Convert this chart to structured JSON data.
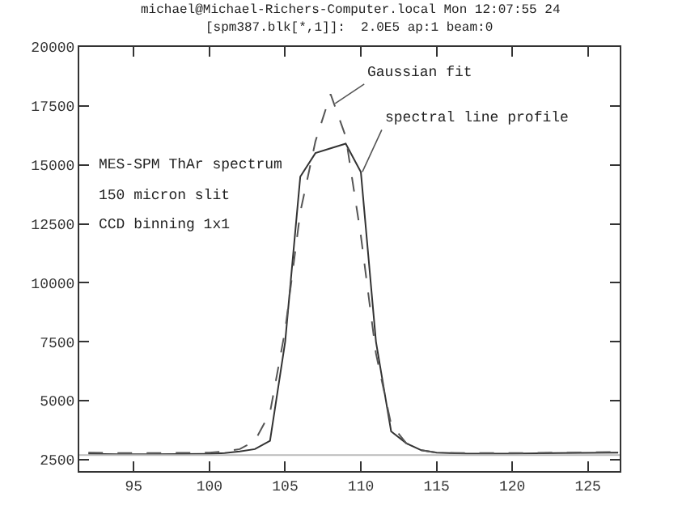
{
  "chart_data": {
    "type": "line",
    "annotations": [
      "michael@Michael-Richers-Computer.local Mon 12:07:55 24",
      "[spm387.blk[*,1]]:  2.0E5 ap:1 beam:0",
      "MES-SPM ThAr spectrum",
      "150 micron slit",
      "CCD binning 1x1",
      {
        "text": "Gaussian fit",
        "x": 108.3,
        "y": 17600
      },
      {
        "text": "spectral line profile",
        "x": 110.1,
        "y": 14700
      }
    ],
    "x": [
      92,
      94,
      96,
      98,
      100,
      101,
      102,
      103,
      104,
      105,
      106,
      107,
      108,
      109,
      110,
      111,
      112,
      113,
      114,
      115,
      117,
      120,
      123,
      127
    ],
    "series": [
      {
        "color": "#333333",
        "line_style": "solid",
        "values": [
          2750,
          2730,
          2730,
          2740,
          2750,
          2780,
          2850,
          2950,
          3300,
          7500,
          14500,
          15500,
          15700,
          15900,
          14700,
          7500,
          3700,
          3200,
          2900,
          2800,
          2760,
          2760,
          2780,
          2800
        ]
      },
      {
        "color": "#555555",
        "line_style": "dashed",
        "values": [
          2800,
          2780,
          2780,
          2790,
          2800,
          2850,
          2950,
          3300,
          4500,
          8000,
          13000,
          16000,
          18000,
          16200,
          12000,
          7000,
          4000,
          3200,
          2900,
          2800,
          2780,
          2780,
          2800,
          2830
        ]
      }
    ],
    "ref_lines": [
      {
        "axis": "y",
        "value": 2700,
        "color": "#bbbbbb"
      }
    ],
    "xlim": [
      91.4,
      127.1
    ],
    "ylim": [
      2020,
      20000
    ],
    "xticks": [
      95,
      100,
      105,
      110,
      115,
      120,
      125
    ],
    "yticks": [
      2500,
      5000,
      7500,
      10000,
      12500,
      15000,
      17500,
      20000
    ],
    "marker": "none"
  }
}
